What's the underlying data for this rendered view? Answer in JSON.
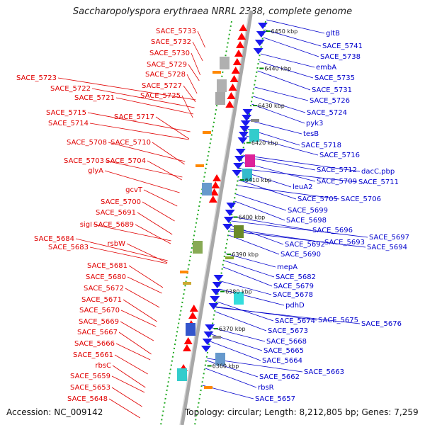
{
  "title": "Saccharopolyspora erythraea NRRL 2338, complete genome",
  "accession": "Accession: NC_009142",
  "topology": "Topology: circular; Length: 8,212,805 bp; Genes: 7,259",
  "colors": {
    "left_labels": "#e00000",
    "right_labels": "#0000cc",
    "backbone": "#999999",
    "strand_dots": "#22aa22",
    "tick": "#008800"
  },
  "left_labels": [
    "SACE_5733",
    "SACE_5732",
    "SACE_5730",
    "SACE_5729",
    "SACE_5728",
    "SACE_5723",
    "SACE_5727",
    "SACE_5722",
    "SACE_5725",
    "SACE_5721",
    "SACE_5715",
    "SACE_5717",
    "SACE_5714",
    "SACE_5708",
    "SACE_5710",
    "SACE_5703",
    "SACE_5704",
    "glyA",
    "gcvT",
    "SACE_5700",
    "SACE_5691",
    "sigI",
    "SACE_5689",
    "SACE_5684",
    "SACE_5683",
    "rsbW",
    "SACE_5681",
    "SACE_5680",
    "SACE_5672",
    "SACE_5671",
    "SACE_5670",
    "SACE_5669",
    "SACE_5667",
    "SACE_5666",
    "SACE_5661",
    "rbsC",
    "SACE_5659",
    "SACE_5653",
    "SACE_5648"
  ],
  "right_labels": [
    "gltB",
    "SACE_5741",
    "SACE_5738",
    "embA",
    "SACE_5735",
    "SACE_5731",
    "SACE_5726",
    "SACE_5724",
    "pyk3",
    "tesB",
    "SACE_5718",
    "SACE_5716",
    "SACE_5712",
    "dacC,pbp",
    "SACE_5709",
    "SACE_5711",
    "leuA2",
    "SACE_5705",
    "SACE_5706",
    "SACE_5699",
    "SACE_5698",
    "SACE_5696",
    "SACE_5697",
    "SACE_5692",
    "SACE_5693",
    "SACE_5694",
    "SACE_5690",
    "mepA",
    "SACE_5682",
    "SACE_5679",
    "SACE_5678",
    "pdhD",
    "SACE_5674",
    "SACE_5675",
    "SACE_5676",
    "SACE_5673",
    "SACE_5668",
    "SACE_5665",
    "SACE_5664",
    "SACE_5663",
    "SACE_5662",
    "rbsR",
    "SACE_5657"
  ],
  "ticks": [
    "6450 kbp",
    "6440 kbp",
    "6430 kbp",
    "6420 kbp",
    "6410 kbp",
    "6400 kbp",
    "6390 kbp",
    "6380 kbp",
    "6370 kbp",
    "6360 kbp"
  ]
}
